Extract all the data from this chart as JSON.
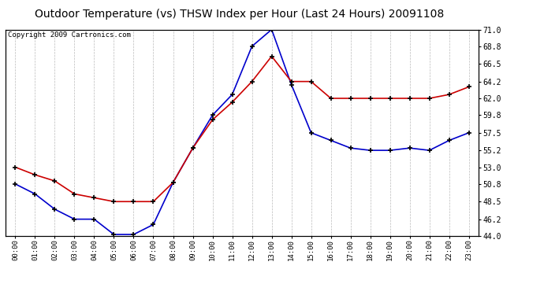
{
  "title": "Outdoor Temperature (vs) THSW Index per Hour (Last 24 Hours) 20091108",
  "copyright": "Copyright 2009 Cartronics.com",
  "hours": [
    "00:00",
    "01:00",
    "02:00",
    "03:00",
    "04:00",
    "05:00",
    "06:00",
    "07:00",
    "08:00",
    "09:00",
    "10:00",
    "11:00",
    "12:00",
    "13:00",
    "14:00",
    "15:00",
    "16:00",
    "17:00",
    "18:00",
    "19:00",
    "20:00",
    "21:00",
    "22:00",
    "23:00"
  ],
  "temp": [
    50.8,
    49.5,
    47.5,
    46.2,
    46.2,
    44.2,
    44.2,
    45.5,
    51.0,
    55.5,
    59.8,
    62.5,
    68.8,
    71.0,
    63.8,
    57.5,
    56.5,
    55.5,
    55.2,
    55.2,
    55.5,
    55.2,
    56.5,
    57.5
  ],
  "thsw": [
    53.0,
    52.0,
    51.2,
    49.5,
    49.0,
    48.5,
    48.5,
    48.5,
    51.0,
    55.5,
    59.2,
    61.5,
    64.2,
    67.5,
    64.2,
    64.2,
    62.0,
    62.0,
    62.0,
    62.0,
    62.0,
    62.0,
    62.5,
    63.5
  ],
  "temp_color": "#0000cc",
  "thsw_color": "#cc0000",
  "ylim": [
    44.0,
    71.0
  ],
  "yticks": [
    44.0,
    46.2,
    48.5,
    50.8,
    53.0,
    55.2,
    57.5,
    59.8,
    62.0,
    64.2,
    66.5,
    68.8,
    71.0
  ],
  "background_color": "#ffffff",
  "plot_bg_color": "#ffffff",
  "grid_color": "#aaaaaa",
  "title_fontsize": 10,
  "copyright_fontsize": 6.5
}
